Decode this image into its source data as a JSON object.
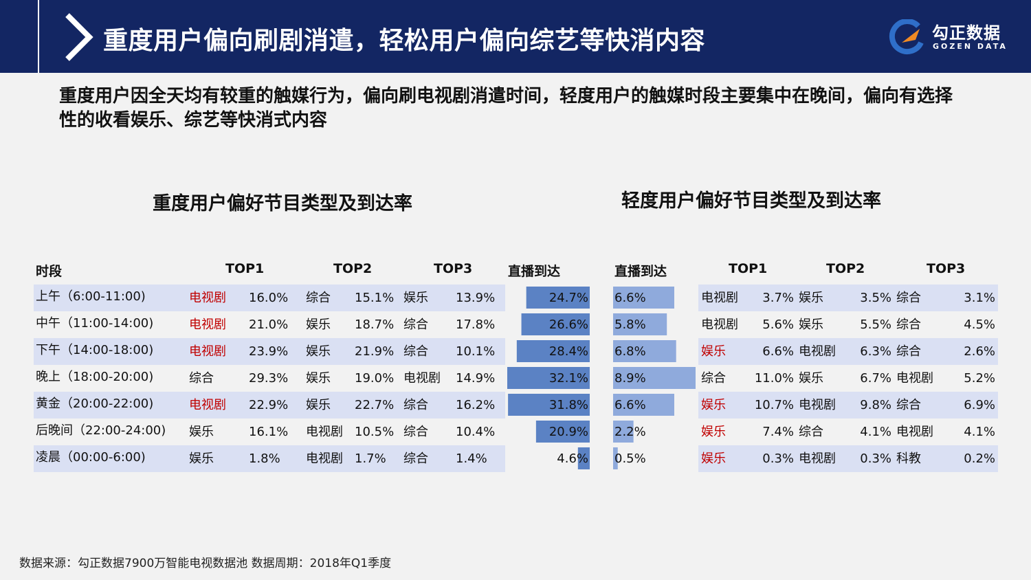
{
  "header": {
    "title": "重度用户偏向刷剧消遣，轻松用户偏向综艺等快消内容",
    "logo_cn": "勾正数据",
    "logo_en": "GOZEN DATA"
  },
  "subtitle": "重度用户因全天均有较重的触媒行为，偏向刷电视剧消遣时间，轻度用户的触媒时段主要集中在晚间，偏向有选择性的收看娱乐、综艺等快消式内容",
  "left_title": "重度用户偏好节目类型及到达率",
  "right_title": "轻度用户偏好节目类型及到达率",
  "headers": {
    "period": "时段",
    "top1": "TOP1",
    "top2": "TOP2",
    "top3": "TOP3",
    "reach": "直播到达"
  },
  "source": "数据来源：勾正数据7900万智能电视数据池  数据周期：2018年Q1季度",
  "colors": {
    "header_bg": "#132663",
    "stripe": "#dae0f3",
    "heavy_bar": "#5b82c4",
    "light_bar": "#8faadc",
    "highlight_text": "#c00000"
  },
  "chart_data": [
    {
      "type": "table",
      "title": "重度用户偏好节目类型及到达率",
      "columns": [
        "时段",
        "TOP1",
        "",
        "TOP2",
        "",
        "TOP3",
        "",
        "直播到达"
      ],
      "rows": [
        {
          "period": "上午（6:00-11:00)",
          "top1": "电视剧",
          "top1_red": true,
          "top1_pct": "16.0%",
          "top2": "综合",
          "top2_pct": "15.1%",
          "top3": "娱乐",
          "top3_pct": "13.9%",
          "reach": 24.7,
          "reach_label": "24.7%"
        },
        {
          "period": "中午（11:00-14:00)",
          "top1": "电视剧",
          "top1_red": true,
          "top1_pct": "21.0%",
          "top2": "娱乐",
          "top2_pct": "18.7%",
          "top3": "综合",
          "top3_pct": "17.8%",
          "reach": 26.6,
          "reach_label": "26.6%"
        },
        {
          "period": "下午（14:00-18:00)",
          "top1": "电视剧",
          "top1_red": true,
          "top1_pct": "23.9%",
          "top2": "娱乐",
          "top2_pct": "21.9%",
          "top3": "综合",
          "top3_pct": "10.1%",
          "reach": 28.4,
          "reach_label": "28.4%"
        },
        {
          "period": "晚上（18:00-20:00)",
          "top1": "综合",
          "top1_red": false,
          "top1_pct": "29.3%",
          "top2": "娱乐",
          "top2_pct": "19.0%",
          "top3": "电视剧",
          "top3_pct": "14.9%",
          "reach": 32.1,
          "reach_label": "32.1%"
        },
        {
          "period": "黄金（20:00-22:00)",
          "top1": "电视剧",
          "top1_red": true,
          "top1_pct": "22.9%",
          "top2": "娱乐",
          "top2_pct": "22.7%",
          "top3": "综合",
          "top3_pct": "16.2%",
          "reach": 31.8,
          "reach_label": "31.8%"
        },
        {
          "period": "后晚间（22:00-24:00)",
          "top1": "娱乐",
          "top1_red": false,
          "top1_pct": "16.1%",
          "top2": "电视剧",
          "top2_pct": "10.5%",
          "top3": "综合",
          "top3_pct": "10.4%",
          "reach": 20.9,
          "reach_label": "20.9%"
        },
        {
          "period": "凌晨（00:00-6:00)",
          "top1": "娱乐",
          "top1_red": false,
          "top1_pct": "1.8%",
          "top2": "电视剧",
          "top2_pct": "1.7%",
          "top3": "综合",
          "top3_pct": "1.4%",
          "reach": 4.6,
          "reach_label": "4.6%"
        }
      ]
    },
    {
      "type": "table",
      "title": "轻度用户偏好节目类型及到达率",
      "columns": [
        "直播到达",
        "TOP1",
        "",
        "TOP2",
        "",
        "TOP3",
        ""
      ],
      "rows": [
        {
          "reach": 6.6,
          "reach_label": "6.6%",
          "top1": "电视剧",
          "top1_red": false,
          "top1_pct": "3.7%",
          "top2": "娱乐",
          "top2_pct": "3.5%",
          "top3": "综合",
          "top3_pct": "3.1%"
        },
        {
          "reach": 5.8,
          "reach_label": "5.8%",
          "top1": "电视剧",
          "top1_red": false,
          "top1_pct": "5.6%",
          "top2": "娱乐",
          "top2_pct": "5.5%",
          "top3": "综合",
          "top3_pct": "4.5%"
        },
        {
          "reach": 6.8,
          "reach_label": "6.8%",
          "top1": "娱乐",
          "top1_red": true,
          "top1_pct": "6.6%",
          "top2": "电视剧",
          "top2_pct": "6.3%",
          "top3": "综合",
          "top3_pct": "2.6%"
        },
        {
          "reach": 8.9,
          "reach_label": "8.9%",
          "top1": "综合",
          "top1_red": false,
          "top1_pct": "11.0%",
          "top2": "娱乐",
          "top2_pct": "6.7%",
          "top3": "电视剧",
          "top3_pct": "5.2%"
        },
        {
          "reach": 6.6,
          "reach_label": "6.6%",
          "top1": "娱乐",
          "top1_red": true,
          "top1_pct": "10.7%",
          "top2": "电视剧",
          "top2_pct": "9.8%",
          "top3": "综合",
          "top3_pct": "6.9%"
        },
        {
          "reach": 2.2,
          "reach_label": "2.2%",
          "top1": "娱乐",
          "top1_red": true,
          "top1_pct": "7.4%",
          "top2": "综合",
          "top2_pct": "4.1%",
          "top3": "电视剧",
          "top3_pct": "4.1%"
        },
        {
          "reach": 0.5,
          "reach_label": "0.5%",
          "top1": "娱乐",
          "top1_red": true,
          "top1_pct": "0.3%",
          "top2": "电视剧",
          "top2_pct": "0.3%",
          "top3": "科教",
          "top3_pct": "0.2%"
        }
      ]
    }
  ]
}
